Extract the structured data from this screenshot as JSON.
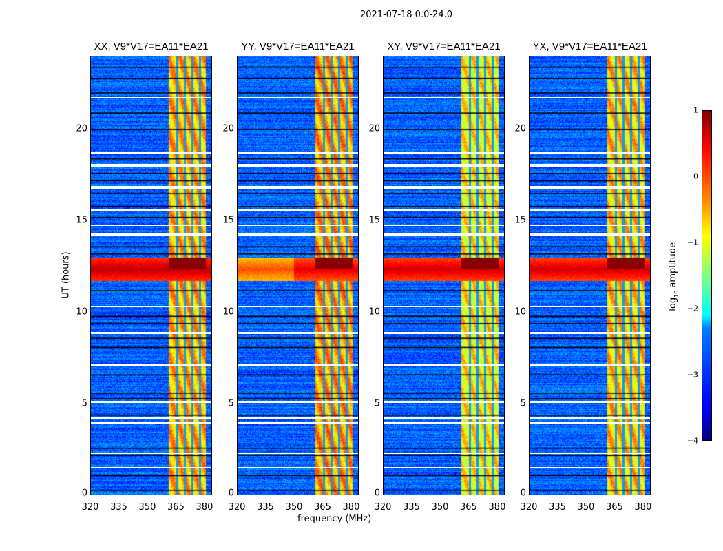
{
  "suptitle": "2021-07-18 0.0-24.0",
  "chart_data": {
    "type": "heatmap",
    "title": "2021-07-18 0.0-24.0",
    "xlabel": "frequency (MHz)",
    "ylabel": "UT (hours)",
    "xlim": [
      320,
      384
    ],
    "ylim": [
      0,
      24
    ],
    "xticks": [
      "320",
      "335",
      "350",
      "365",
      "380"
    ],
    "yticks": [
      "0",
      "5",
      "10",
      "15",
      "20"
    ],
    "panels": [
      {
        "title": "XX, V9*V17=EA11*EA21",
        "band_level": -0.5,
        "rfi_level": 0.7
      },
      {
        "title": "YY, V9*V17=EA11*EA21",
        "band_level": -0.4,
        "rfi_level": 0.5
      },
      {
        "title": "XY, V9*V17=EA11*EA21",
        "band_level": -0.8,
        "rfi_level": 0.6
      },
      {
        "title": "YX, V9*V17=EA11*EA21",
        "band_level": -0.6,
        "rfi_level": 0.6
      }
    ],
    "background_level": -2.9,
    "rfi_band_mhz": [
      361,
      380.5
    ],
    "rfi_subband_gaps_mhz": [
      365.5,
      369.5,
      373.5,
      377.5
    ],
    "broadband_rfi_hours": [
      11.7,
      13.0
    ],
    "flagged_hours": [
      [
        1.45,
        1.55
      ],
      [
        2.3,
        2.35
      ],
      [
        3.9,
        4.0
      ],
      [
        4.2,
        4.25
      ],
      [
        5.05,
        5.15
      ],
      [
        7.05,
        7.15
      ],
      [
        8.8,
        8.9
      ],
      [
        10.3,
        10.35
      ],
      [
        14.15,
        14.35
      ],
      [
        14.7,
        14.8
      ],
      [
        15.55,
        15.65
      ],
      [
        16.7,
        16.9
      ],
      [
        17.9,
        18.1
      ],
      [
        18.7,
        18.75
      ],
      [
        21.7,
        21.75
      ]
    ],
    "dark_hours": [
      0.3,
      1.1,
      2.2,
      2.6,
      4.4,
      5.3,
      5.6,
      6.6,
      8.1,
      8.6,
      9.4,
      9.8,
      11.2,
      13.2,
      13.6,
      15.2,
      15.8,
      16.5,
      17.2,
      17.6,
      18.4,
      20.0,
      20.9,
      22.0,
      22.8,
      23.4
    ],
    "colorbar": {
      "label_prefix": "log",
      "label_sub": "10",
      "label_suffix": " amplitude",
      "range": [
        -4,
        1
      ],
      "ticks": [
        "1",
        "0",
        "−1",
        "−2",
        "−3",
        "−4"
      ]
    }
  }
}
